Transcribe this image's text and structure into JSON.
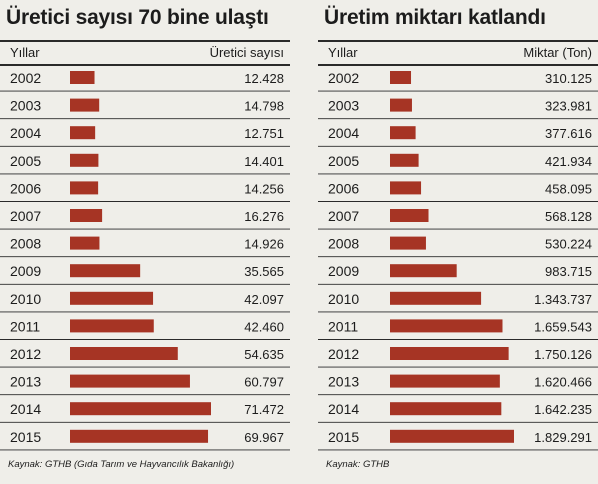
{
  "charts": [
    {
      "id": "left",
      "title": "Üretici sayısı 70 bine ulaştı",
      "header_left": "Yıllar",
      "header_right": "Üretici sayısı",
      "source": "Kaynak: GTHB (Gıda Tarım ve Hayvancılık Bakanlığı)",
      "bar_color": "#a63424"
    },
    {
      "id": "right",
      "title": "Üretim miktarı katlandı",
      "header_left": "Yıllar",
      "header_right": "Miktar (Ton)",
      "source": "Kaynak: GTHB",
      "bar_color": "#a63424"
    }
  ],
  "chart_data": [
    {
      "type": "bar",
      "orientation": "horizontal",
      "title": "Üretici sayısı 70 bine ulaştı",
      "categories": [
        "2002",
        "2003",
        "2004",
        "2005",
        "2006",
        "2007",
        "2008",
        "2009",
        "2010",
        "2011",
        "2012",
        "2013",
        "2014",
        "2015"
      ],
      "values": [
        12428,
        14798,
        12751,
        14401,
        14256,
        16276,
        14926,
        35565,
        42097,
        42460,
        54635,
        60797,
        71472,
        69967
      ],
      "value_labels": [
        "12.428",
        "14.798",
        "12.751",
        "14.401",
        "14.256",
        "16.276",
        "14.926",
        "35.565",
        "42.097",
        "42.460",
        "54.635",
        "60.797",
        "71.472",
        "69.967"
      ],
      "xlabel": "Üretici sayısı",
      "ylabel": "Yıllar",
      "xlim": [
        0,
        71472
      ]
    },
    {
      "type": "bar",
      "orientation": "horizontal",
      "title": "Üretim miktarı katlandı",
      "categories": [
        "2002",
        "2003",
        "2004",
        "2005",
        "2006",
        "2007",
        "2008",
        "2009",
        "2010",
        "2011",
        "2012",
        "2013",
        "2014",
        "2015"
      ],
      "values": [
        310125,
        323981,
        377616,
        421934,
        458095,
        568128,
        530224,
        983715,
        1343737,
        1659543,
        1750126,
        1620466,
        1642235,
        1829291
      ],
      "value_labels": [
        "310.125",
        "323.981",
        "377.616",
        "421.934",
        "458.095",
        "568.128",
        "530.224",
        "983.715",
        "1.343.737",
        "1.659.543",
        "1.750.126",
        "1.620.466",
        "1.642.235",
        "1.829.291"
      ],
      "xlabel": "Miktar (Ton)",
      "ylabel": "Yıllar",
      "xlim": [
        0,
        1829291
      ]
    }
  ]
}
